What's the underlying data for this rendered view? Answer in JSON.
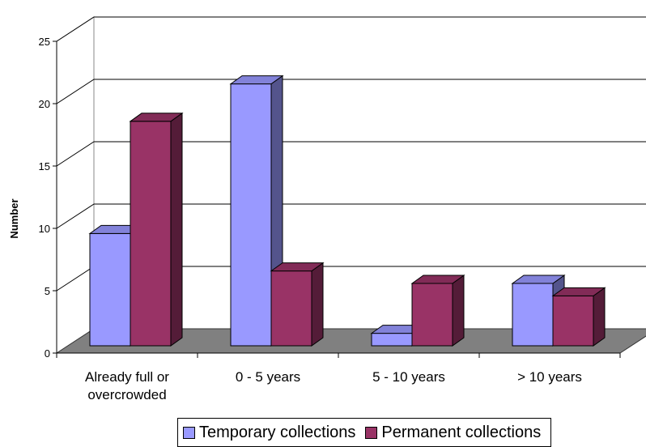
{
  "chart_data": {
    "type": "bar",
    "title": "",
    "xlabel": "",
    "ylabel": "Number",
    "ylim": [
      0,
      25
    ],
    "yticks": [
      0,
      5,
      10,
      15,
      20,
      25
    ],
    "categories": [
      [
        "Already full or",
        "overcrowded"
      ],
      [
        "0 - 5 years"
      ],
      [
        "5 - 10 years"
      ],
      [
        "> 10 years"
      ]
    ],
    "series": [
      {
        "name": "Temporary collections",
        "values": [
          9,
          21,
          1,
          5
        ],
        "color": "#9999ff"
      },
      {
        "name": "Permanent collections",
        "values": [
          18,
          6,
          5,
          4
        ],
        "color": "#993366"
      }
    ],
    "grid": true,
    "legend_position": "bottom",
    "style": "3d-clustered-column"
  }
}
